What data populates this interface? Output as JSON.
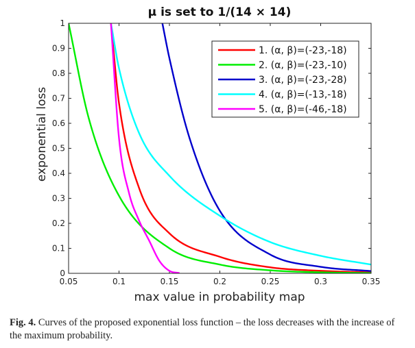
{
  "chart_data": {
    "type": "line",
    "title": "μ is set to 1/(14 × 14)",
    "xlabel": "max value in probability map",
    "ylabel": "exponential loss",
    "xlim": [
      0.05,
      0.35
    ],
    "ylim": [
      0,
      1
    ],
    "xticks": [
      "0.05",
      "0.1",
      "0.15",
      "0.2",
      "0.25",
      "0.3",
      "0.35"
    ],
    "yticks": [
      "0",
      "0.1",
      "0.2",
      "0.3",
      "0.4",
      "0.5",
      "0.6",
      "0.7",
      "0.8",
      "0.9",
      "1"
    ],
    "grid": false,
    "legend_position": "top-right",
    "series": [
      {
        "name": "1. (α, β)=(-23,-18)",
        "color": "#ff0000",
        "alpha": -23,
        "beta": -18,
        "x": [
          0.092,
          0.1,
          0.12,
          0.15,
          0.2,
          0.25,
          0.3,
          0.35
        ],
        "values": [
          1.0,
          0.68,
          0.34,
          0.16,
          0.066,
          0.024,
          0.01,
          0.004
        ]
      },
      {
        "name": "2. (α, β)=(-23,-10)",
        "color": "#00ee00",
        "alpha": -23,
        "beta": -10,
        "x": [
          0.05,
          0.07,
          0.1,
          0.15,
          0.2,
          0.25,
          0.3,
          0.35
        ],
        "values": [
          1.0,
          0.62,
          0.31,
          0.1,
          0.035,
          0.012,
          0.004,
          0.001
        ]
      },
      {
        "name": "3. (α, β)=(-23,-28)",
        "color": "#0000cc",
        "alpha": -23,
        "beta": -28,
        "x": [
          0.143,
          0.15,
          0.17,
          0.2,
          0.25,
          0.3,
          0.35
        ],
        "values": [
          1.0,
          0.86,
          0.54,
          0.25,
          0.075,
          0.026,
          0.009
        ]
      },
      {
        "name": "4. (α, β)=(-13,-18)",
        "color": "#00ffff",
        "alpha": -13,
        "beta": -18,
        "x": [
          0.092,
          0.1,
          0.12,
          0.15,
          0.2,
          0.25,
          0.3,
          0.35
        ],
        "values": [
          1.0,
          0.82,
          0.56,
          0.39,
          0.23,
          0.125,
          0.07,
          0.035
        ]
      },
      {
        "name": "5. (α, β)=(-46,-18)",
        "color": "#ff00ff",
        "alpha": -46,
        "beta": -18,
        "x": [
          0.092,
          0.1,
          0.11,
          0.12,
          0.13,
          0.14,
          0.15,
          0.16
        ],
        "values": [
          1.0,
          0.54,
          0.32,
          0.21,
          0.13,
          0.05,
          0.01,
          0.001
        ]
      }
    ]
  },
  "caption": {
    "label": "Fig. 4.",
    "text": "Curves of the proposed exponential loss function – the loss decreases with the increase of the maximum probability."
  }
}
